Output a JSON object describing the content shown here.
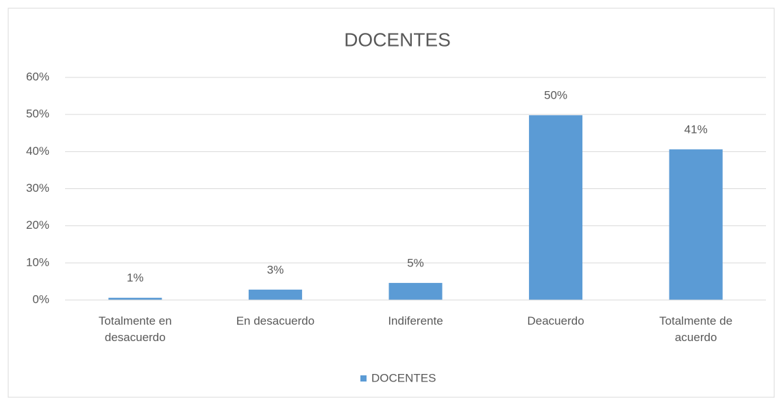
{
  "chart_data": {
    "type": "bar",
    "title": "DOCENTES",
    "categories": [
      "Totalmente en desacuerdo",
      "En desacuerdo",
      "Indiferente",
      "Deacuerdo",
      "Totalmente de acuerdo"
    ],
    "series": [
      {
        "name": "DOCENTES",
        "color": "#5b9bd5",
        "values": [
          0.6,
          2.8,
          4.6,
          49.8,
          40.6
        ],
        "value_labels": [
          "1%",
          "3%",
          "5%",
          "50%",
          "41%"
        ]
      }
    ],
    "ylim": [
      0,
      60
    ],
    "yticks": [
      {
        "value": 0,
        "label": "0%"
      },
      {
        "value": 10,
        "label": "10%"
      },
      {
        "value": 20,
        "label": "20%"
      },
      {
        "value": 30,
        "label": "30%"
      },
      {
        "value": 40,
        "label": "40%"
      },
      {
        "value": 50,
        "label": "50%"
      },
      {
        "value": 60,
        "label": "60%"
      }
    ],
    "grid": true,
    "legend": "bottom"
  }
}
